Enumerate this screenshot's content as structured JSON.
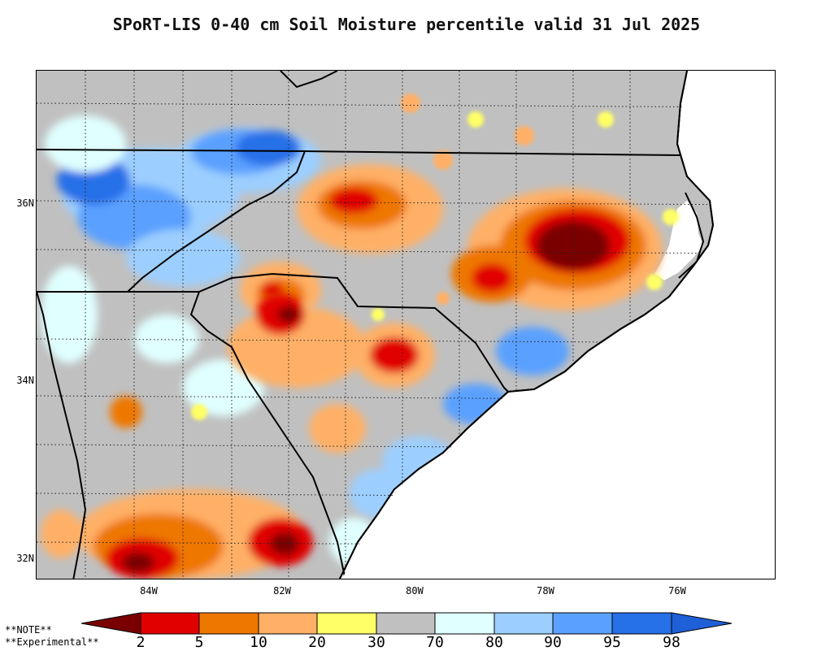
{
  "title": "SPoRT-LIS 0-40 cm Soil Moisture percentile valid 31 Jul 2025",
  "lat_labels": [
    "36N",
    "34N",
    "32N"
  ],
  "lon_labels": [
    "84W",
    "82W",
    "80W",
    "78W",
    "76W"
  ],
  "note_lines": [
    "**NOTE**",
    "**Experimental**"
  ],
  "legend": {
    "thresholds": [
      "2",
      "5",
      "10",
      "20",
      "30",
      "70",
      "80",
      "90",
      "95",
      "98"
    ],
    "colors": [
      "#7a0000",
      "#e00000",
      "#ee7700",
      "#ffb066",
      "#ffff66",
      "#c0c0c0",
      "#e0ffff",
      "#9ccfff",
      "#5aa0ff",
      "#2670e8",
      "#1f5fd8"
    ]
  }
}
